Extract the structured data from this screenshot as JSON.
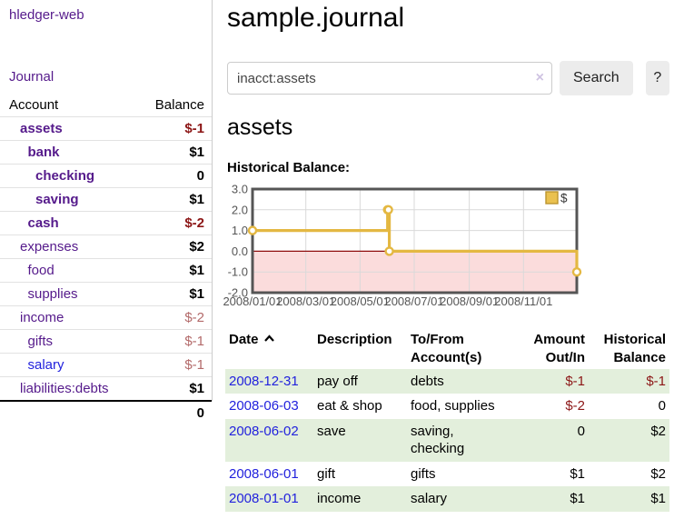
{
  "colors": {
    "link_purple": "#551a8b",
    "link_blue": "#2222dd",
    "negative_strong": "#8c1616",
    "negative_muted": "#b36a6a",
    "row_stripe_green": "#e3efdc",
    "button_bg": "#ececec"
  },
  "sidebar": {
    "app_link": "hledger-web",
    "journal_link": "Journal",
    "accounts_table": {
      "headers": {
        "account": "Account",
        "balance": "Balance"
      },
      "rows": [
        {
          "name": "assets",
          "indent": 1,
          "bold": true,
          "blue": false,
          "balance": "$-1",
          "balance_class": "neg"
        },
        {
          "name": "bank",
          "indent": 2,
          "bold": true,
          "blue": false,
          "balance": "$1",
          "balance_class": "pos"
        },
        {
          "name": "checking",
          "indent": 3,
          "bold": true,
          "blue": false,
          "balance": "0",
          "balance_class": "pos"
        },
        {
          "name": "saving",
          "indent": 3,
          "bold": true,
          "blue": false,
          "balance": "$1",
          "balance_class": "pos"
        },
        {
          "name": "cash",
          "indent": 2,
          "bold": true,
          "blue": false,
          "balance": "$-2",
          "balance_class": "neg"
        },
        {
          "name": "expenses",
          "indent": 1,
          "bold": false,
          "blue": false,
          "balance": "$2",
          "balance_class": "pos"
        },
        {
          "name": "food",
          "indent": 2,
          "bold": false,
          "blue": false,
          "balance": "$1",
          "balance_class": "pos"
        },
        {
          "name": "supplies",
          "indent": 2,
          "bold": false,
          "blue": false,
          "balance": "$1",
          "balance_class": "pos"
        },
        {
          "name": "income",
          "indent": 1,
          "bold": false,
          "blue": false,
          "balance": "$-2",
          "balance_class": "muted"
        },
        {
          "name": "gifts",
          "indent": 2,
          "bold": false,
          "blue": false,
          "balance": "$-1",
          "balance_class": "muted"
        },
        {
          "name": "salary",
          "indent": 2,
          "bold": false,
          "blue": true,
          "balance": "$-1",
          "balance_class": "muted"
        },
        {
          "name": "liabilities:debts",
          "indent": 1,
          "bold": false,
          "blue": false,
          "balance": "$1",
          "balance_class": "pos"
        }
      ],
      "total": "0"
    }
  },
  "header": {
    "title": "sample.journal"
  },
  "search": {
    "value": "inacct:assets",
    "clear_icon": "×",
    "search_label": "Search",
    "help_label": "?"
  },
  "account_page": {
    "heading": "assets",
    "chart_label": "Historical Balance:"
  },
  "chart_data": {
    "type": "line",
    "step": true,
    "title": "Historical Balance:",
    "legend": [
      {
        "label": "$",
        "color": "#eac14f",
        "border": "#bb952f"
      }
    ],
    "legend_position": "top-right",
    "grid": true,
    "x_range": [
      "2008-01-01",
      "2008-12-31"
    ],
    "x_ticks": [
      {
        "date": "2008-01-01",
        "label": "2008/01/01"
      },
      {
        "date": "2008-03-01",
        "label": "2008/03/01"
      },
      {
        "date": "2008-05-01",
        "label": "2008/05/01"
      },
      {
        "date": "2008-07-01",
        "label": "2008/07/01"
      },
      {
        "date": "2008-09-01",
        "label": "2008/09/01"
      },
      {
        "date": "2008-11-01",
        "label": "2008/11/01"
      }
    ],
    "ylim": [
      -2,
      3
    ],
    "y_ticks": [
      3.0,
      2.0,
      1.0,
      0.0,
      -1.0,
      -2.0
    ],
    "series": [
      {
        "name": "$",
        "points": [
          [
            "2008-01-01",
            1
          ],
          [
            "2008-06-01",
            2
          ],
          [
            "2008-06-02",
            2
          ],
          [
            "2008-06-03",
            0
          ],
          [
            "2008-12-31",
            -1
          ]
        ]
      }
    ],
    "line_color": "#e4b842",
    "marker_fill": "#ffffff",
    "negative_region_fill": "#fbdcdc",
    "zero_line_color": "#8f0e0e",
    "grid_color": "#d9d9d9",
    "border_color": "#555555",
    "label_color": "#555555"
  },
  "register_table": {
    "headers": [
      "Date",
      "Description",
      "To/From Account(s)",
      "Amount Out/In",
      "Historical Balance"
    ],
    "sorted_column": "Date",
    "sort_direction": "ascending",
    "rows": [
      {
        "date": "2008-12-31",
        "description": "pay off",
        "accounts": "debts",
        "amount": "$-1",
        "amount_neg": true,
        "balance": "$-1",
        "balance_neg": true
      },
      {
        "date": "2008-06-03",
        "description": "eat & shop",
        "accounts": "food, supplies",
        "amount": "$-2",
        "amount_neg": true,
        "balance": "0",
        "balance_neg": false
      },
      {
        "date": "2008-06-02",
        "description": "save",
        "accounts": "saving, checking",
        "amount": "0",
        "amount_neg": false,
        "balance": "$2",
        "balance_neg": false
      },
      {
        "date": "2008-06-01",
        "description": "gift",
        "accounts": "gifts",
        "amount": "$1",
        "amount_neg": false,
        "balance": "$2",
        "balance_neg": false
      },
      {
        "date": "2008-01-01",
        "description": "income",
        "accounts": "salary",
        "amount": "$1",
        "amount_neg": false,
        "balance": "$1",
        "balance_neg": false
      }
    ]
  }
}
